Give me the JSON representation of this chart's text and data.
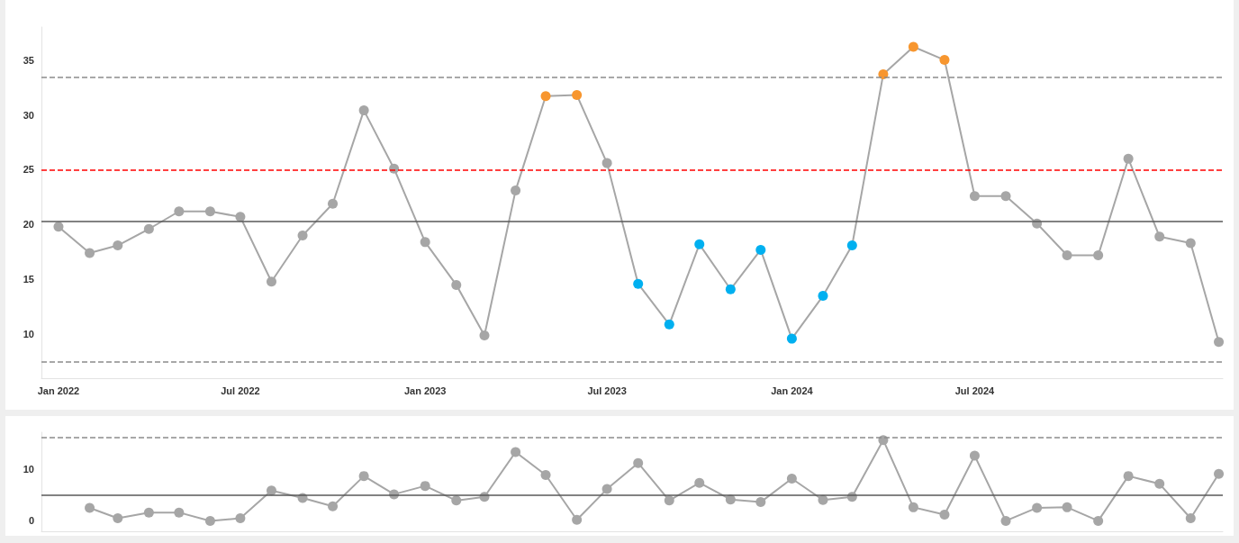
{
  "chart_data": [
    {
      "type": "line",
      "x": [
        "2022-01",
        "2022-02",
        "2022-03",
        "2022-04",
        "2022-05",
        "2022-06",
        "2022-07",
        "2022-08",
        "2022-09",
        "2022-10",
        "2022-11",
        "2022-12",
        "2023-01",
        "2023-02",
        "2023-03",
        "2023-04",
        "2023-05",
        "2023-06",
        "2023-07",
        "2023-08",
        "2023-09",
        "2023-10",
        "2023-11",
        "2023-12",
        "2024-01",
        "2024-02",
        "2024-03",
        "2024-04",
        "2024-05",
        "2024-06",
        "2024-07",
        "2024-08",
        "2024-09",
        "2024-10",
        "2024-11",
        "2024-12",
        "2025-01",
        "2025-02",
        "2025-03"
      ],
      "values": [
        19.8,
        17.4,
        18.1,
        19.6,
        21.2,
        21.2,
        20.7,
        14.8,
        19.0,
        21.9,
        30.4,
        25.1,
        18.4,
        14.5,
        9.9,
        23.1,
        31.7,
        31.8,
        25.6,
        14.6,
        10.9,
        18.2,
        14.1,
        17.7,
        9.6,
        13.5,
        18.1,
        33.7,
        36.2,
        35.0,
        22.6,
        22.6,
        20.1,
        17.2,
        17.2,
        26.0,
        18.9,
        18.3,
        9.3
      ],
      "color": "#a6a6a6",
      "colors": [
        "#a6a6a6",
        "#a6a6a6",
        "#a6a6a6",
        "#a6a6a6",
        "#a6a6a6",
        "#a6a6a6",
        "#a6a6a6",
        "#a6a6a6",
        "#a6a6a6",
        "#a6a6a6",
        "#a6a6a6",
        "#a6a6a6",
        "#a6a6a6",
        "#a6a6a6",
        "#a6a6a6",
        "#a6a6a6",
        "#f7962f",
        "#f7962f",
        "#a6a6a6",
        "#00b0f0",
        "#00b0f0",
        "#00b0f0",
        "#00b0f0",
        "#00b0f0",
        "#00b0f0",
        "#00b0f0",
        "#00b0f0",
        "#f7962f",
        "#f7962f",
        "#f7962f",
        "#a6a6a6",
        "#a6a6a6",
        "#a6a6a6",
        "#a6a6a6",
        "#a6a6a6",
        "#a6a6a6",
        "#a6a6a6",
        "#a6a6a6",
        "#a6a6a6"
      ],
      "xlim": [
        "2021-12-15",
        "2025-03-05"
      ],
      "xticks": [
        {
          "value": "2022-01",
          "label": "Jan 2022"
        },
        {
          "value": "2022-07",
          "label": "Jul 2022"
        },
        {
          "value": "2023-01",
          "label": "Jan 2023"
        },
        {
          "value": "2023-07",
          "label": "Jul 2023"
        },
        {
          "value": "2024-01",
          "label": "Jan 2024"
        },
        {
          "value": "2024-07",
          "label": "Jul 2024"
        }
      ],
      "ylim": [
        6,
        38
      ],
      "yticks": [
        10,
        15,
        20,
        25,
        30,
        35
      ],
      "ref_lines": [
        {
          "axis": "y",
          "value": 20.3,
          "color": "#595959",
          "line_style": "solid"
        },
        {
          "axis": "y",
          "value": 25,
          "color": "#ff0000",
          "line_style": "dashed"
        },
        {
          "axis": "y",
          "value": 33.4,
          "color": "#8c8c8c",
          "line_style": "dashed"
        },
        {
          "axis": "y",
          "value": 7.5,
          "color": "#8c8c8c",
          "line_style": "dashed"
        }
      ],
      "marker": "circle",
      "grid": false
    },
    {
      "type": "line",
      "x": [
        "2022-02",
        "2022-03",
        "2022-04",
        "2022-05",
        "2022-06",
        "2022-07",
        "2022-08",
        "2022-09",
        "2022-10",
        "2022-11",
        "2022-12",
        "2023-01",
        "2023-02",
        "2023-03",
        "2023-04",
        "2023-05",
        "2023-06",
        "2023-07",
        "2023-08",
        "2023-09",
        "2023-10",
        "2023-11",
        "2023-12",
        "2024-01",
        "2024-02",
        "2024-03",
        "2024-04",
        "2024-05",
        "2024-06",
        "2024-07",
        "2024-08",
        "2024-09",
        "2024-10",
        "2024-11",
        "2024-12",
        "2025-01",
        "2025-02",
        "2025-03"
      ],
      "values": [
        2.5,
        0.5,
        1.6,
        1.6,
        0,
        0.5,
        5.8,
        4.4,
        2.8,
        8.6,
        5.1,
        6.7,
        3.9,
        4.6,
        13.2,
        8.8,
        0.2,
        6.1,
        11.1,
        3.9,
        7.3,
        4.1,
        3.6,
        8.1,
        4.0,
        4.6,
        15.5,
        2.6,
        1.2,
        12.5,
        0,
        2.5,
        2.6,
        0,
        8.6,
        7.1,
        0.5,
        9.0
      ],
      "color": "#a6a6a6",
      "xlim": [
        "2021-12-15",
        "2025-03-05"
      ],
      "ylim": [
        -2,
        17
      ],
      "yticks": [
        0,
        10
      ],
      "tick_labels": "y",
      "ref_lines": [
        {
          "axis": "y",
          "value": 4.9,
          "color": "#595959",
          "line_style": "solid"
        },
        {
          "axis": "y",
          "value": 16.0,
          "color": "#8c8c8c",
          "line_style": "dashed"
        }
      ],
      "marker": "circle",
      "grid": false
    }
  ]
}
